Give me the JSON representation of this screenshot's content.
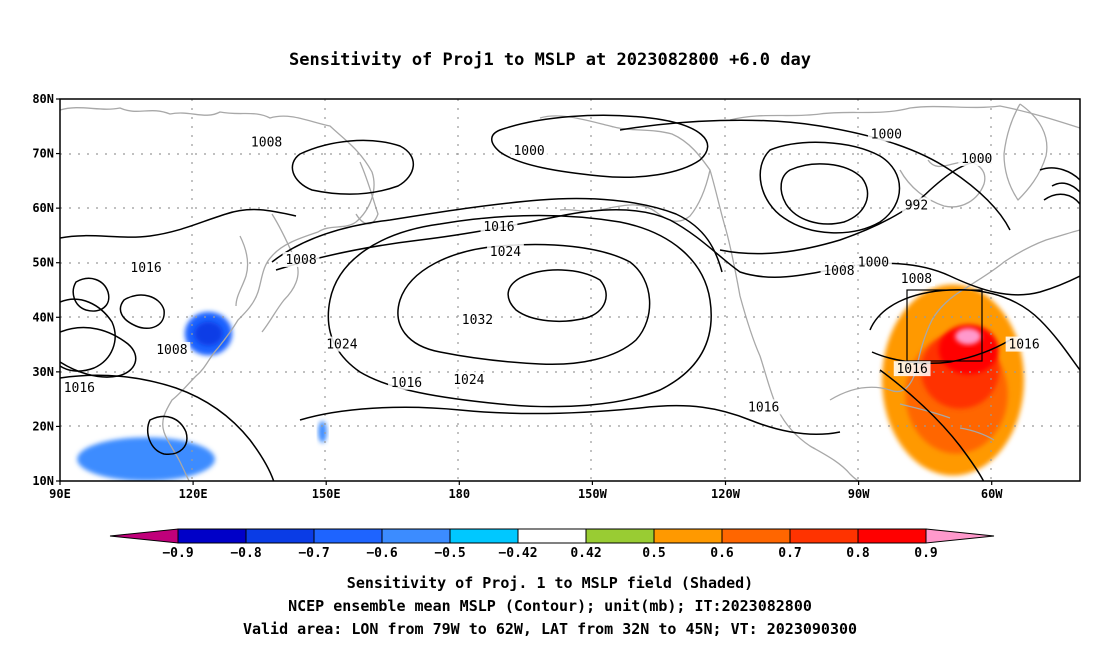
{
  "chart_data": {
    "type": "heatmap",
    "title": "Sensitivity of Proj1 to MSLP at 2023082800 +6.0 day",
    "x_ticks": [
      "90E",
      "120E",
      "150E",
      "180",
      "150W",
      "120W",
      "90W",
      "60W"
    ],
    "y_ticks": [
      "80N",
      "70N",
      "60N",
      "50N",
      "40N",
      "30N",
      "20N",
      "10N"
    ],
    "lon_range": [
      90,
      327
    ],
    "lat_range": [
      10,
      80
    ],
    "grid": "dotted",
    "colorbar": {
      "levels": [
        "-0.9",
        "-0.8",
        "-0.7",
        "-0.6",
        "-0.5",
        "-0.42",
        "0.42",
        "0.5",
        "0.6",
        "0.7",
        "0.8",
        "0.9"
      ],
      "colors": [
        "#c0007a",
        "#0000c8",
        "#0a3ce6",
        "#1e64ff",
        "#3c8cff",
        "#00c8ff",
        "#ffffff",
        "#99cc33",
        "#ff9900",
        "#ff6600",
        "#ff3300",
        "#ff0000",
        "#ff99cc"
      ]
    },
    "contour_labels": [
      {
        "text": "1008",
        "lon": 138,
        "lat": 72
      },
      {
        "text": "1000",
        "lon": 199,
        "lat": 70.5
      },
      {
        "text": "1000",
        "lon": 282,
        "lat": 73.5
      },
      {
        "text": "1000",
        "lon": 303,
        "lat": 69
      },
      {
        "text": "992",
        "lon": 289,
        "lat": 60.5
      },
      {
        "text": "1016",
        "lon": 110,
        "lat": 49
      },
      {
        "text": "1016",
        "lon": 192,
        "lat": 56.5
      },
      {
        "text": "1008",
        "lon": 146,
        "lat": 50.5
      },
      {
        "text": "1024",
        "lon": 193.5,
        "lat": 52
      },
      {
        "text": "1008",
        "lon": 271,
        "lat": 48.5
      },
      {
        "text": "1000",
        "lon": 279,
        "lat": 50
      },
      {
        "text": "1008",
        "lon": 289,
        "lat": 47
      },
      {
        "text": "1032",
        "lon": 187,
        "lat": 39.5
      },
      {
        "text": "1024",
        "lon": 155.5,
        "lat": 35
      },
      {
        "text": "1008",
        "lon": 116,
        "lat": 34
      },
      {
        "text": "1016",
        "lon": 94.5,
        "lat": 27
      },
      {
        "text": "1024",
        "lon": 185,
        "lat": 28.5
      },
      {
        "text": "1016",
        "lon": 170.5,
        "lat": 28
      },
      {
        "text": "1016",
        "lon": 253.5,
        "lat": 23.5
      },
      {
        "text": "1016",
        "lon": 288,
        "lat": 30.5
      },
      {
        "text": "1016",
        "lon": 314,
        "lat": 35
      }
    ],
    "shaded_regions": [
      {
        "sign": "positive",
        "level": "0.5",
        "lon": [
          281,
          314
        ],
        "lat": [
          11,
          46
        ]
      },
      {
        "sign": "positive",
        "level": "0.9",
        "lon": [
          298,
          304
        ],
        "lat": [
          35,
          38
        ]
      },
      {
        "sign": "negative",
        "level": "-0.6",
        "lon": [
          119,
          130
        ],
        "lat": [
          33,
          41
        ]
      },
      {
        "sign": "negative",
        "level": "-0.5",
        "lon": [
          94,
          126
        ],
        "lat": [
          10,
          18
        ]
      },
      {
        "sign": "negative",
        "level": "-0.5",
        "lon": [
          150,
          152
        ],
        "lat": [
          17,
          21
        ]
      }
    ],
    "valid_area": {
      "lon": [
        -79,
        -62
      ],
      "lat": [
        32,
        45
      ]
    }
  },
  "captions": {
    "line1": "Sensitivity of Proj. 1 to MSLP field (Shaded)",
    "line2": "NCEP ensemble mean MSLP (Contour); unit(mb); IT:2023082800",
    "line3": "Valid area: LON from 79W to 62W, LAT from 32N to 45N; VT: 2023090300"
  }
}
